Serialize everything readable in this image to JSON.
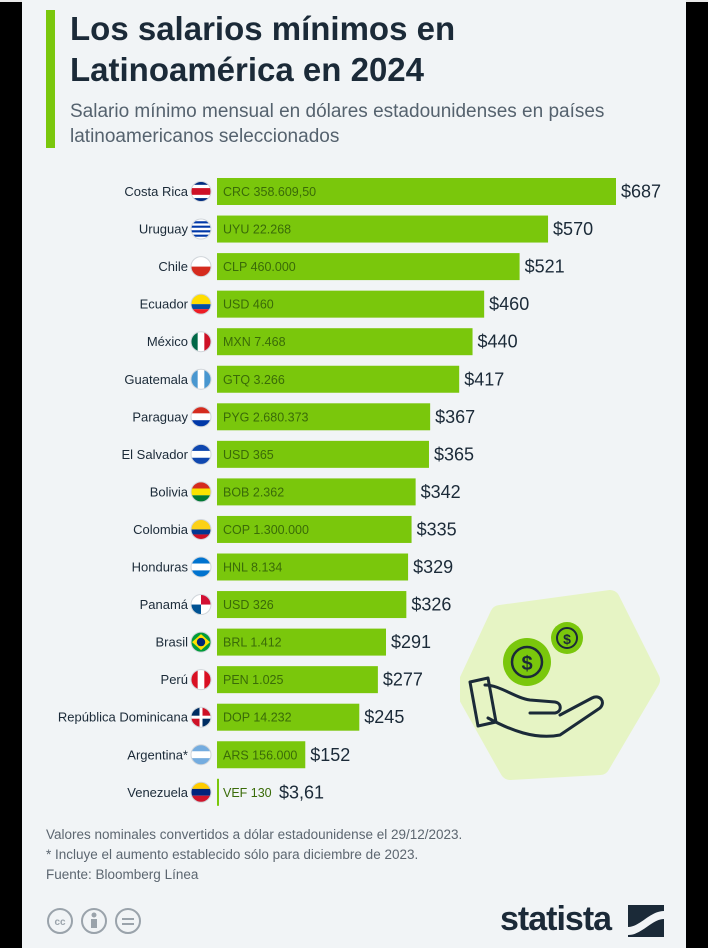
{
  "header": {
    "title": "Los salarios mínimos en Latinoamérica en 2024",
    "subtitle": "Salario mínimo mensual en dólares estadounidenses en países latinoamericanos seleccionados"
  },
  "chart_data": {
    "type": "bar",
    "orientation": "horizontal",
    "unit": "USD",
    "categories": [
      "Costa Rica",
      "Uruguay",
      "Chile",
      "Ecuador",
      "México",
      "Guatemala",
      "Paraguay",
      "El Salvador",
      "Bolivia",
      "Colombia",
      "Honduras",
      "Panamá",
      "Brasil",
      "Perú",
      "República Dominicana",
      "Argentina*",
      "Venezuela"
    ],
    "values": [
      687,
      570,
      521,
      460,
      440,
      417,
      367,
      365,
      342,
      335,
      329,
      326,
      291,
      277,
      245,
      152,
      3.61
    ],
    "value_labels": [
      "$687",
      "$570",
      "$521",
      "$460",
      "$440",
      "$417",
      "$367",
      "$365",
      "$342",
      "$335",
      "$329",
      "$326",
      "$291",
      "$277",
      "$245",
      "$152",
      "$3,61"
    ],
    "local_currency_labels": [
      "CRC 358.609,50",
      "UYU 22.268",
      "CLP 460.000",
      "USD 460",
      "MXN 7.468",
      "GTQ 3.266",
      "PYG 2.680.373",
      "USD 365",
      "BOB 2.362",
      "COP 1.300.000",
      "HNL 8.134",
      "USD 326",
      "BRL 1.412",
      "PEN 1.025",
      "DOP 14.232",
      "ARS 156.000",
      "VEF 130"
    ],
    "bar_color": "#7ac70c",
    "grid": false,
    "legend": "none"
  },
  "flags": [
    "costa-rica-flag-icon",
    "uruguay-flag-icon",
    "chile-flag-icon",
    "ecuador-flag-icon",
    "mexico-flag-icon",
    "guatemala-flag-icon",
    "paraguay-flag-icon",
    "el-salvador-flag-icon",
    "bolivia-flag-icon",
    "colombia-flag-icon",
    "honduras-flag-icon",
    "panama-flag-icon",
    "brasil-flag-icon",
    "peru-flag-icon",
    "republica-dominicana-flag-icon",
    "argentina-flag-icon",
    "venezuela-flag-icon"
  ],
  "footer": {
    "note1": "Valores nominales convertidos a dólar estadounidense el 29/12/2023.",
    "note2": "* Incluye el aumento establecido sólo para diciembre de 2023.",
    "source": "Fuente: Bloomberg Línea",
    "brand": "statista"
  },
  "decoration": {
    "icon": "hand-holding-coins-icon",
    "coin_symbol": "$"
  }
}
